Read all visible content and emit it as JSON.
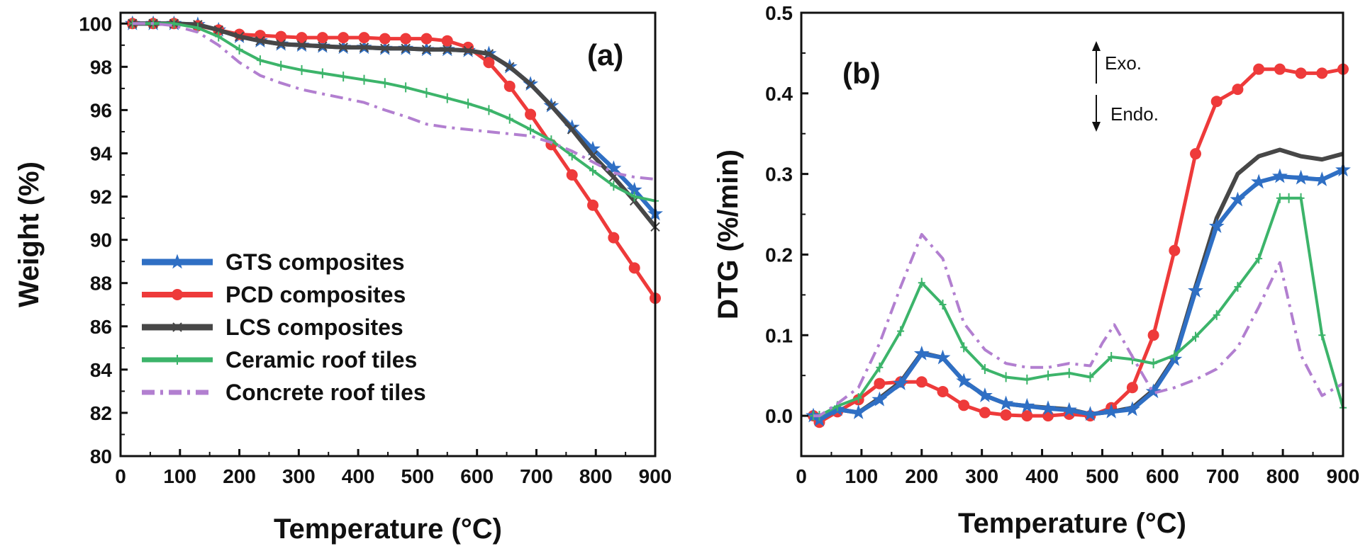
{
  "colors": {
    "GTS": "#2f6fc4",
    "PCD": "#ee3a3a",
    "LCS": "#474747",
    "CER": "#3cb46a",
    "CON": "#b27fd0"
  },
  "chart_data": [
    {
      "type": "line",
      "panel_label": "(a)",
      "xlabel": "Temperature (°C)",
      "ylabel": "Weight (%)",
      "xlim": [
        0,
        900
      ],
      "ylim": [
        80,
        100.5
      ],
      "xticks": [
        0,
        100,
        200,
        300,
        400,
        500,
        600,
        700,
        800,
        900
      ],
      "yticks": [
        80,
        82,
        84,
        86,
        88,
        90,
        92,
        94,
        96,
        98,
        100
      ],
      "legend_position": "bottom-left",
      "series": [
        {
          "key": "GTS",
          "name": "GTS composites",
          "marker": "star",
          "x": [
            20,
            55,
            90,
            130,
            165,
            200,
            235,
            270,
            305,
            340,
            375,
            410,
            445,
            480,
            515,
            550,
            585,
            620,
            655,
            690,
            725,
            760,
            795,
            830,
            865,
            900
          ],
          "y": [
            100,
            100,
            100,
            99.95,
            99.7,
            99.4,
            99.2,
            99.05,
            99.0,
            98.95,
            98.9,
            98.9,
            98.85,
            98.85,
            98.8,
            98.8,
            98.75,
            98.6,
            98.0,
            97.2,
            96.2,
            95.2,
            94.2,
            93.3,
            92.3,
            91.2
          ]
        },
        {
          "key": "PCD",
          "name": "PCD composites",
          "marker": "circle",
          "x": [
            20,
            55,
            90,
            130,
            165,
            200,
            235,
            270,
            305,
            340,
            375,
            410,
            445,
            480,
            515,
            550,
            585,
            620,
            655,
            690,
            725,
            760,
            795,
            830,
            865,
            900
          ],
          "y": [
            100,
            100,
            100,
            99.9,
            99.7,
            99.5,
            99.45,
            99.4,
            99.35,
            99.35,
            99.35,
            99.35,
            99.3,
            99.3,
            99.3,
            99.2,
            98.9,
            98.2,
            97.1,
            95.8,
            94.4,
            93.0,
            91.6,
            90.1,
            88.7,
            87.3
          ]
        },
        {
          "key": "LCS",
          "name": "LCS composites",
          "marker": "x",
          "x": [
            20,
            55,
            90,
            130,
            165,
            200,
            235,
            270,
            305,
            340,
            375,
            410,
            445,
            480,
            515,
            550,
            585,
            620,
            655,
            690,
            725,
            760,
            795,
            830,
            865,
            900
          ],
          "y": [
            100,
            100,
            100,
            99.95,
            99.7,
            99.4,
            99.2,
            99.05,
            99.0,
            98.95,
            98.9,
            98.9,
            98.85,
            98.85,
            98.8,
            98.8,
            98.75,
            98.6,
            98.0,
            97.2,
            96.2,
            95.1,
            93.9,
            92.9,
            91.8,
            90.6
          ]
        },
        {
          "key": "CER",
          "name": "Ceramic roof tiles",
          "marker": "plus",
          "x": [
            20,
            55,
            90,
            130,
            165,
            200,
            235,
            270,
            305,
            340,
            375,
            410,
            445,
            480,
            515,
            550,
            585,
            620,
            655,
            690,
            725,
            760,
            795,
            830,
            865,
            900
          ],
          "y": [
            100,
            100,
            100,
            99.8,
            99.4,
            98.8,
            98.3,
            98.05,
            97.85,
            97.7,
            97.55,
            97.4,
            97.25,
            97.05,
            96.8,
            96.55,
            96.3,
            96.0,
            95.6,
            95.1,
            94.6,
            93.9,
            93.2,
            92.5,
            92.0,
            91.8
          ]
        },
        {
          "key": "CON",
          "name": "Concrete roof tiles",
          "marker": "none",
          "x": [
            20,
            55,
            90,
            130,
            165,
            200,
            235,
            270,
            305,
            340,
            375,
            410,
            445,
            480,
            515,
            550,
            585,
            620,
            655,
            690,
            725,
            760,
            795,
            830,
            865,
            900
          ],
          "y": [
            100,
            100,
            99.9,
            99.6,
            99.0,
            98.2,
            97.6,
            97.25,
            96.95,
            96.75,
            96.55,
            96.35,
            96.0,
            95.7,
            95.35,
            95.2,
            95.1,
            95.0,
            94.9,
            94.8,
            94.5,
            94.1,
            93.6,
            93.1,
            92.9,
            92.8
          ]
        }
      ]
    },
    {
      "type": "line",
      "panel_label": "(b)",
      "xlabel": "Temperature (°C)",
      "ylabel": "DTG (%/min)",
      "xlim": [
        0,
        900
      ],
      "ylim": [
        -0.05,
        0.5
      ],
      "xticks": [
        0,
        100,
        200,
        300,
        400,
        500,
        600,
        700,
        800,
        900
      ],
      "yticks": [
        0.0,
        0.1,
        0.2,
        0.3,
        0.4,
        0.5
      ],
      "annotations": [
        "Exo.",
        "Endo."
      ],
      "series": [
        {
          "key": "PCD",
          "name": "PCD composites",
          "marker": "circle",
          "x": [
            20,
            30,
            60,
            95,
            130,
            165,
            200,
            235,
            270,
            305,
            340,
            375,
            410,
            445,
            480,
            515,
            550,
            585,
            620,
            655,
            690,
            725,
            760,
            795,
            830,
            865,
            900
          ],
          "y": [
            0.0,
            -0.008,
            0.005,
            0.02,
            0.04,
            0.042,
            0.042,
            0.03,
            0.013,
            0.004,
            0.001,
            0.0,
            0.0,
            0.002,
            0.0,
            0.01,
            0.035,
            0.1,
            0.205,
            0.325,
            0.39,
            0.405,
            0.43,
            0.43,
            0.425,
            0.425,
            0.43
          ]
        },
        {
          "key": "LCS",
          "name": "LCS composites",
          "marker": "none",
          "x": [
            20,
            30,
            60,
            95,
            130,
            165,
            200,
            235,
            270,
            305,
            340,
            375,
            410,
            445,
            480,
            515,
            550,
            585,
            620,
            655,
            690,
            725,
            760,
            795,
            830,
            865,
            900
          ],
          "y": [
            0.0,
            -0.005,
            0.008,
            0.004,
            0.022,
            0.042,
            0.078,
            0.072,
            0.043,
            0.025,
            0.015,
            0.012,
            0.01,
            0.008,
            0.002,
            0.005,
            0.01,
            0.032,
            0.072,
            0.16,
            0.245,
            0.3,
            0.322,
            0.33,
            0.322,
            0.318,
            0.325
          ]
        },
        {
          "key": "GTS",
          "name": "GTS composites",
          "marker": "star",
          "x": [
            20,
            30,
            60,
            95,
            130,
            165,
            200,
            235,
            270,
            305,
            340,
            375,
            410,
            445,
            480,
            515,
            550,
            585,
            620,
            655,
            690,
            725,
            760,
            795,
            830,
            865,
            900
          ],
          "y": [
            0.0,
            -0.005,
            0.008,
            0.004,
            0.02,
            0.04,
            0.077,
            0.072,
            0.043,
            0.025,
            0.015,
            0.012,
            0.009,
            0.007,
            0.002,
            0.005,
            0.008,
            0.03,
            0.07,
            0.155,
            0.235,
            0.268,
            0.29,
            0.297,
            0.295,
            0.293,
            0.305
          ]
        },
        {
          "key": "CER",
          "name": "Ceramic roof tiles",
          "marker": "plus",
          "x": [
            20,
            30,
            60,
            95,
            130,
            165,
            200,
            235,
            270,
            305,
            340,
            375,
            410,
            445,
            480,
            515,
            550,
            585,
            620,
            655,
            690,
            725,
            760,
            795,
            810,
            830,
            865,
            900
          ],
          "y": [
            0.0,
            0.0,
            0.012,
            0.022,
            0.06,
            0.105,
            0.165,
            0.138,
            0.085,
            0.058,
            0.048,
            0.045,
            0.05,
            0.053,
            0.048,
            0.073,
            0.07,
            0.065,
            0.075,
            0.098,
            0.125,
            0.16,
            0.195,
            0.27,
            0.27,
            0.27,
            0.1,
            0.01
          ]
        },
        {
          "key": "CON",
          "name": "Concrete roof tiles",
          "marker": "none",
          "x": [
            20,
            30,
            60,
            95,
            130,
            165,
            200,
            235,
            270,
            305,
            340,
            375,
            410,
            445,
            480,
            500,
            520,
            545,
            585,
            620,
            655,
            690,
            725,
            760,
            795,
            830,
            865,
            900
          ],
          "y": [
            0.0,
            0.0,
            0.015,
            0.035,
            0.09,
            0.16,
            0.225,
            0.195,
            0.115,
            0.082,
            0.065,
            0.06,
            0.06,
            0.065,
            0.062,
            0.09,
            0.113,
            0.08,
            0.028,
            0.035,
            0.045,
            0.058,
            0.085,
            0.135,
            0.19,
            0.075,
            0.025,
            0.04
          ]
        }
      ]
    }
  ]
}
